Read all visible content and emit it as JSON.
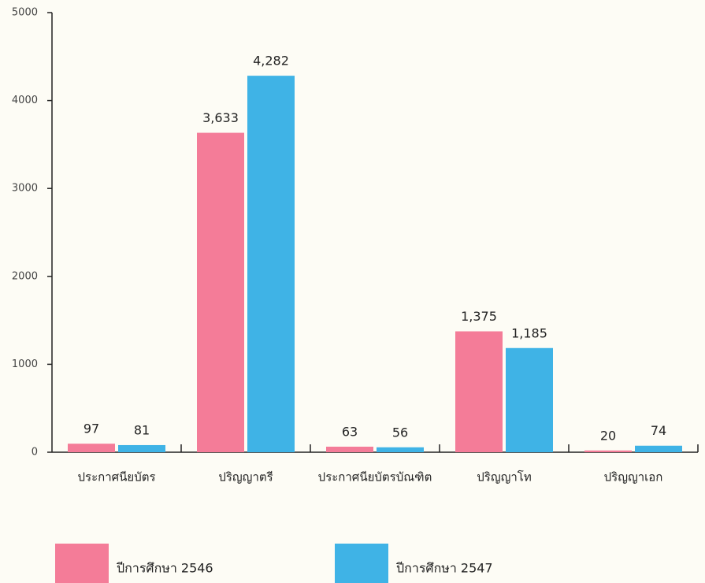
{
  "chart_data": {
    "type": "bar",
    "categories": [
      "ประกาศนียบัตร",
      "ปริญญาตรี",
      "ประกาศนียบัตรบัณฑิต",
      "ปริญญาโท",
      "ปริญญาเอก"
    ],
    "series": [
      {
        "name": "ปีการศึกษา 2546",
        "color": "#f47c98",
        "values": [
          97,
          3633,
          63,
          1375,
          20
        ],
        "value_labels": [
          "97",
          "3,633",
          "63",
          "1,375",
          "20"
        ]
      },
      {
        "name": "ปีการศึกษา 2547",
        "color": "#3fb3e6",
        "values": [
          81,
          4282,
          56,
          1185,
          74
        ],
        "value_labels": [
          "81",
          "4,282",
          "56",
          "1,185",
          "74"
        ]
      }
    ],
    "ylim": [
      0,
      5000
    ],
    "yticks": [
      0,
      1000,
      2000,
      3000,
      4000,
      5000
    ],
    "grid": false
  }
}
